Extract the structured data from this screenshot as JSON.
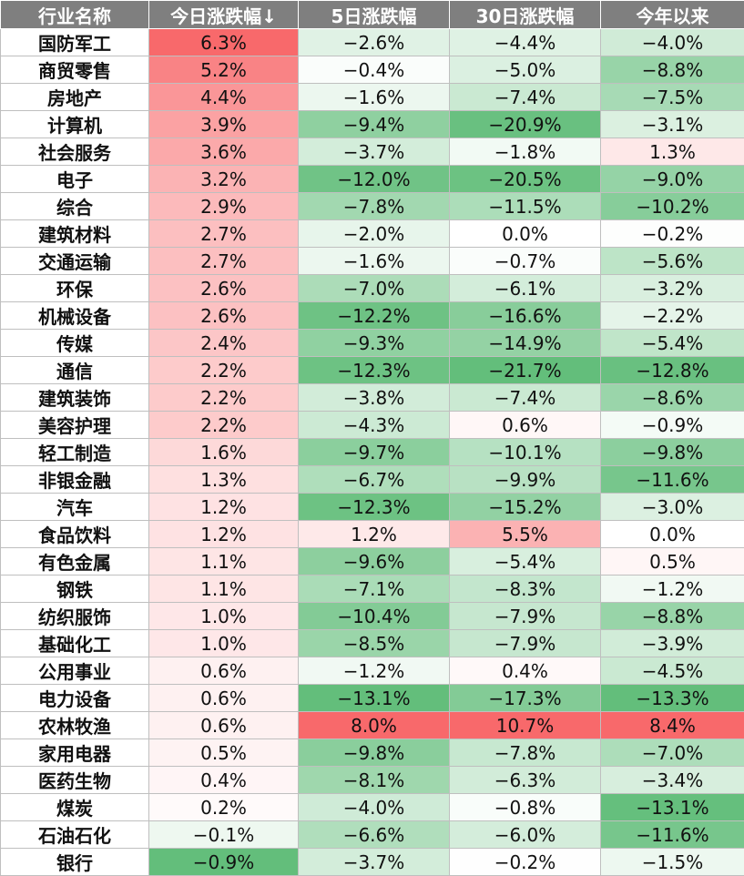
{
  "chart_data": {
    "type": "table",
    "columns": [
      "行业名称",
      "今日涨跌幅↓",
      "5日涨跌幅",
      "30日涨跌幅",
      "今年以来"
    ],
    "colors": {
      "positive": "#f8696b",
      "negative": "#63be7b",
      "neutral": "#ffffff"
    },
    "rows": [
      {
        "name": "国防军工",
        "values": [
          "6.3%",
          "−2.6%",
          "−4.4%",
          "−4.0%"
        ]
      },
      {
        "name": "商贸零售",
        "values": [
          "5.2%",
          "−0.4%",
          "−5.0%",
          "−8.8%"
        ]
      },
      {
        "name": "房地产",
        "values": [
          "4.4%",
          "−1.6%",
          "−7.4%",
          "−7.5%"
        ]
      },
      {
        "name": "计算机",
        "values": [
          "3.9%",
          "−9.4%",
          "−20.9%",
          "−3.1%"
        ]
      },
      {
        "name": "社会服务",
        "values": [
          "3.6%",
          "−3.7%",
          "−1.8%",
          "1.3%"
        ]
      },
      {
        "name": "电子",
        "values": [
          "3.2%",
          "−12.0%",
          "−20.5%",
          "−9.0%"
        ]
      },
      {
        "name": "综合",
        "values": [
          "2.9%",
          "−7.8%",
          "−11.5%",
          "−10.2%"
        ]
      },
      {
        "name": "建筑材料",
        "values": [
          "2.7%",
          "−2.0%",
          "0.0%",
          "−0.2%"
        ]
      },
      {
        "name": "交通运输",
        "values": [
          "2.7%",
          "−1.6%",
          "−0.7%",
          "−5.6%"
        ]
      },
      {
        "name": "环保",
        "values": [
          "2.6%",
          "−7.0%",
          "−6.1%",
          "−3.2%"
        ]
      },
      {
        "name": "机械设备",
        "values": [
          "2.6%",
          "−12.2%",
          "−16.6%",
          "−2.2%"
        ]
      },
      {
        "name": "传媒",
        "values": [
          "2.4%",
          "−9.3%",
          "−14.9%",
          "−5.4%"
        ]
      },
      {
        "name": "通信",
        "values": [
          "2.2%",
          "−12.3%",
          "−21.7%",
          "−12.8%"
        ]
      },
      {
        "name": "建筑装饰",
        "values": [
          "2.2%",
          "−3.8%",
          "−7.4%",
          "−8.6%"
        ]
      },
      {
        "name": "美容护理",
        "values": [
          "2.2%",
          "−4.3%",
          "0.6%",
          "−0.9%"
        ]
      },
      {
        "name": "轻工制造",
        "values": [
          "1.6%",
          "−9.7%",
          "−10.1%",
          "−9.8%"
        ]
      },
      {
        "name": "非银金融",
        "values": [
          "1.3%",
          "−6.7%",
          "−9.9%",
          "−11.6%"
        ]
      },
      {
        "name": "汽车",
        "values": [
          "1.2%",
          "−12.3%",
          "−15.2%",
          "−3.0%"
        ]
      },
      {
        "name": "食品饮料",
        "values": [
          "1.2%",
          "1.2%",
          "5.5%",
          "0.0%"
        ]
      },
      {
        "name": "有色金属",
        "values": [
          "1.1%",
          "−9.6%",
          "−5.4%",
          "0.5%"
        ]
      },
      {
        "name": "钢铁",
        "values": [
          "1.1%",
          "−7.1%",
          "−8.3%",
          "−1.2%"
        ]
      },
      {
        "name": "纺织服饰",
        "values": [
          "1.0%",
          "−10.4%",
          "−7.9%",
          "−8.8%"
        ]
      },
      {
        "name": "基础化工",
        "values": [
          "1.0%",
          "−8.5%",
          "−7.9%",
          "−3.9%"
        ]
      },
      {
        "name": "公用事业",
        "values": [
          "0.6%",
          "−1.2%",
          "0.4%",
          "−4.5%"
        ]
      },
      {
        "name": "电力设备",
        "values": [
          "0.6%",
          "−13.1%",
          "−17.3%",
          "−13.3%"
        ]
      },
      {
        "name": "农林牧渔",
        "values": [
          "0.6%",
          "8.0%",
          "10.7%",
          "8.4%"
        ]
      },
      {
        "name": "家用电器",
        "values": [
          "0.5%",
          "−9.8%",
          "−7.8%",
          "−7.0%"
        ]
      },
      {
        "name": "医药生物",
        "values": [
          "0.4%",
          "−8.1%",
          "−6.3%",
          "−3.4%"
        ]
      },
      {
        "name": "煤炭",
        "values": [
          "0.2%",
          "−4.0%",
          "−0.8%",
          "−13.1%"
        ]
      },
      {
        "name": "石油石化",
        "values": [
          "−0.1%",
          "−6.6%",
          "−6.0%",
          "−11.6%"
        ]
      },
      {
        "name": "银行",
        "values": [
          "−0.9%",
          "−3.7%",
          "−0.2%",
          "−1.5%"
        ]
      }
    ]
  }
}
